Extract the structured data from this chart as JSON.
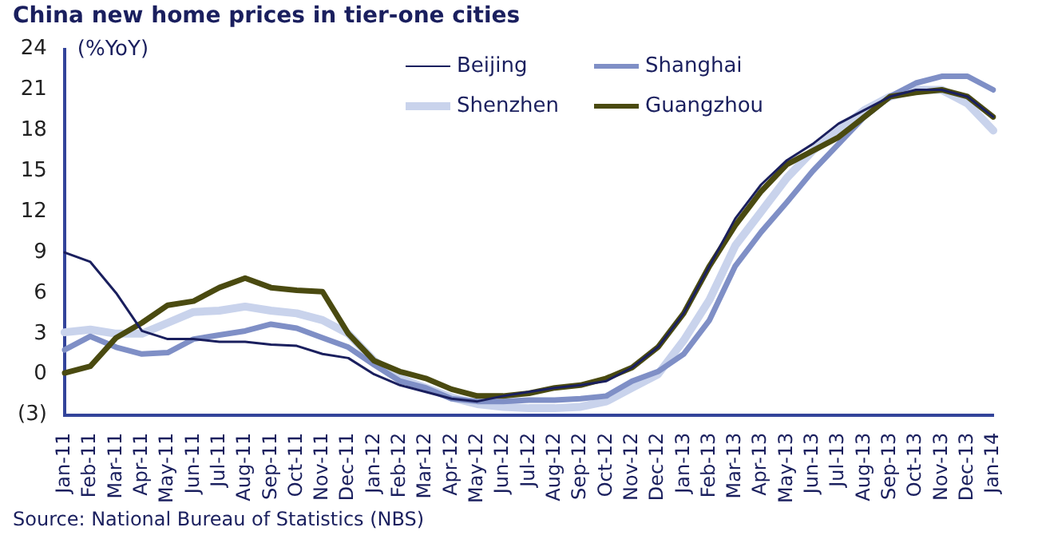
{
  "chart_data": {
    "type": "line",
    "title": "China new home prices in tier-one cities",
    "ylabel": "(%YoY)",
    "annotations": [
      "Source: National Bureau of Statistics (NBS)"
    ],
    "categories": [
      "Jan-11",
      "Feb-11",
      "Mar-11",
      "Apr-11",
      "May-11",
      "Jun-11",
      "Jul-11",
      "Aug-11",
      "Sep-11",
      "Oct-11",
      "Nov-11",
      "Dec-11",
      "Jan-12",
      "Feb-12",
      "Mar-12",
      "Apr-12",
      "May-12",
      "Jun-12",
      "Jul-12",
      "Aug-12",
      "Sep-12",
      "Oct-12",
      "Nov-12",
      "Dec-12",
      "Jan-13",
      "Feb-13",
      "Mar-13",
      "Apr-13",
      "May-13",
      "Jun-13",
      "Jul-13",
      "Aug-13",
      "Sep-13",
      "Oct-13",
      "Nov-13",
      "Dec-13",
      "Jan-14"
    ],
    "series": [
      {
        "name": "Beijing",
        "color": "#1a1f5e",
        "values": [
          9,
          8.3,
          6,
          3.2,
          2.6,
          2.6,
          2.4,
          2.4,
          2.2,
          2.1,
          1.5,
          1.2,
          0,
          -0.8,
          -1.3,
          -1.8,
          -2,
          -1.6,
          -1.3,
          -1,
          -0.8,
          -0.5,
          0.5,
          2,
          4.5,
          8,
          11.5,
          14,
          15.8,
          17,
          18.5,
          19.5,
          20.5,
          21,
          21,
          20.5,
          19
        ]
      },
      {
        "name": "Shanghai",
        "color": "#7f8fc6",
        "values": [
          1.8,
          2.8,
          2,
          1.5,
          1.6,
          2.6,
          2.9,
          3.2,
          3.7,
          3.4,
          2.7,
          2,
          0.7,
          -0.5,
          -1,
          -1.8,
          -2,
          -2,
          -1.9,
          -1.9,
          -1.8,
          -1.6,
          -0.5,
          0.2,
          1.5,
          4,
          8,
          10.5,
          12.7,
          15,
          17,
          19,
          20.5,
          21.5,
          22,
          22,
          21
        ]
      },
      {
        "name": "Shenzhen",
        "color": "#c9d3ec",
        "values": [
          3.1,
          3.3,
          3,
          3,
          3.8,
          4.6,
          4.7,
          5,
          4.7,
          4.5,
          4,
          3,
          1,
          -0.3,
          -1,
          -1.7,
          -2.2,
          -2.4,
          -2.5,
          -2.5,
          -2.4,
          -2,
          -1,
          0,
          2.5,
          5.5,
          9.5,
          12,
          14.5,
          16.5,
          18,
          19.5,
          20.5,
          21,
          21,
          20,
          18
        ]
      },
      {
        "name": "Guangzhou",
        "color": "#4a4a10",
        "values": [
          0.1,
          0.6,
          2.7,
          3.8,
          5.1,
          5.4,
          6.4,
          7.1,
          6.4,
          6.2,
          6.1,
          3,
          1,
          0.2,
          -0.3,
          -1.1,
          -1.6,
          -1.6,
          -1.4,
          -1,
          -0.8,
          -0.3,
          0.5,
          2,
          4.5,
          8,
          11,
          13.5,
          15.5,
          16.5,
          17.5,
          19,
          20.5,
          20.8,
          21,
          20.5,
          19
        ]
      }
    ],
    "ylim": [
      -3,
      24
    ],
    "yticks": [
      {
        "value": -3,
        "label": "(3)"
      },
      0,
      3,
      6,
      9,
      12,
      15,
      18,
      21,
      24
    ],
    "grid": false,
    "legend": "top right",
    "marker": "none",
    "line_style": "solid"
  }
}
